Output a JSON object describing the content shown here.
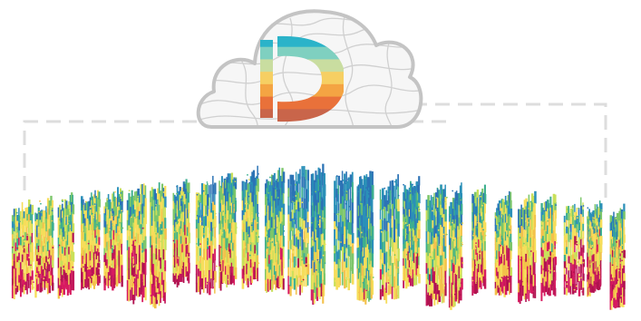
{
  "logo": {
    "letter": "D",
    "stripe_colors": [
      "#2bb3c9",
      "#7fd0c0",
      "#c9dda0",
      "#f6cf63",
      "#f4a443",
      "#e9713a",
      "#c9654a"
    ]
  },
  "cloud": {
    "fill": "#f6f6f6",
    "outline": "#c4c4c4",
    "contour": "#d0d0d0"
  },
  "frame": {
    "dash_color": "#dddddd"
  },
  "bands": {
    "palette": [
      "#c2185b",
      "#d81b60",
      "#b0124f",
      "#f3c14b",
      "#f6dd5a",
      "#c9e05a",
      "#7cc66a",
      "#3cae8f",
      "#2b90b8",
      "#2c73b5"
    ],
    "cluster_count": 27
  }
}
